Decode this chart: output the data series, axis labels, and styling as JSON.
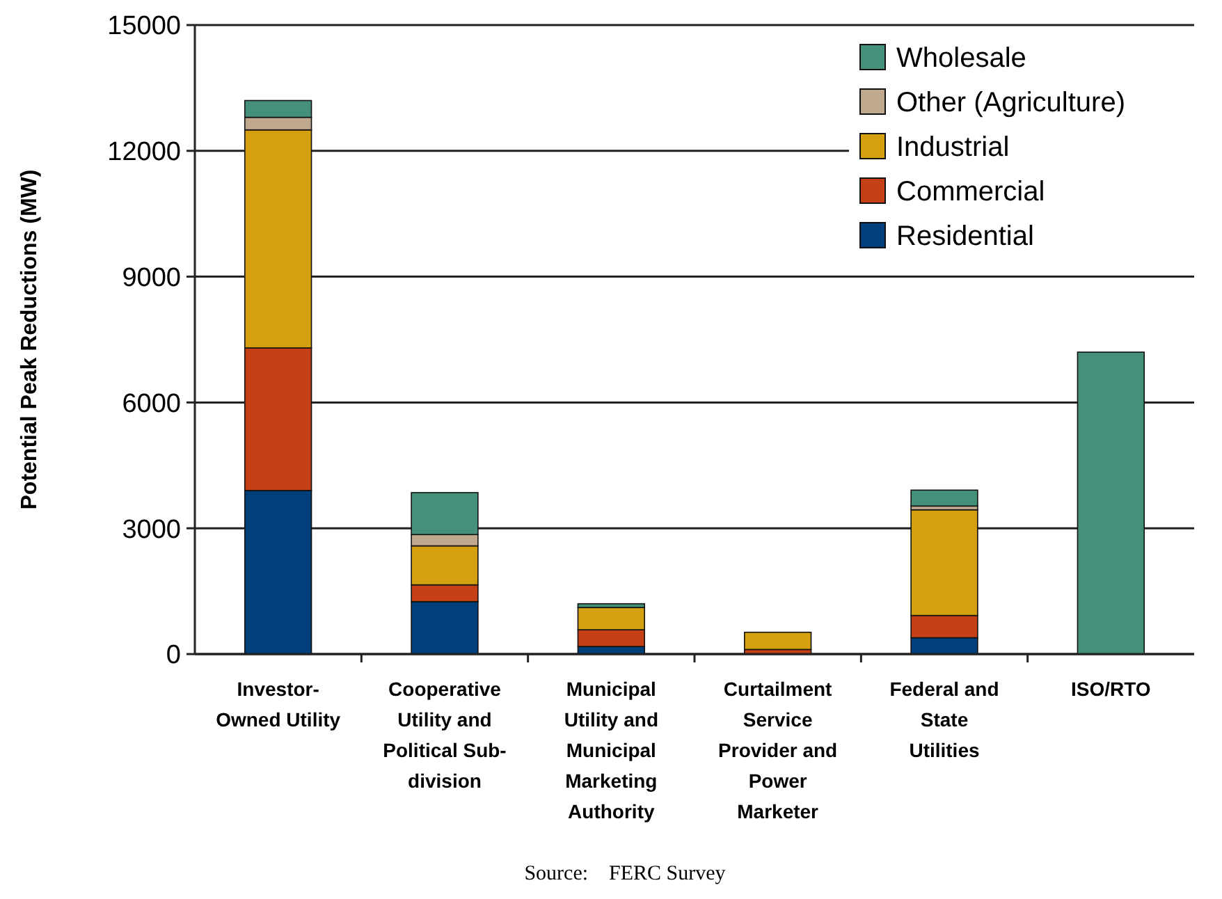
{
  "chart_data": {
    "type": "bar",
    "stacked": true,
    "ylabel": "Potential Peak Reductions (MW)",
    "categories": [
      "Investor-Owned Utility",
      "Cooperative Utility and Political Sub-division",
      "Municipal Utility and Municipal Marketing Authority",
      "Curtailment Service Provider and Power Marketer",
      "Federal and State Utilities",
      "ISO/RTO"
    ],
    "series": [
      {
        "name": "Residential",
        "color": "#003f7a",
        "values": [
          3900,
          1250,
          180,
          0,
          390,
          0
        ]
      },
      {
        "name": "Commercial",
        "color": "#c54016",
        "values": [
          3400,
          400,
          400,
          110,
          530,
          0
        ]
      },
      {
        "name": "Industrial",
        "color": "#d4a00f",
        "values": [
          5200,
          930,
          530,
          410,
          2520,
          0
        ]
      },
      {
        "name": "Other (Agriculture)",
        "color": "#bfa88e",
        "values": [
          300,
          270,
          0,
          0,
          90,
          0
        ]
      },
      {
        "name": "Wholesale",
        "color": "#45907a",
        "values": [
          400,
          1000,
          90,
          0,
          380,
          7200
        ]
      }
    ],
    "ylim": [
      0,
      15000
    ],
    "yticks": [
      0,
      3000,
      6000,
      9000,
      12000,
      15000
    ],
    "grid": "y",
    "legend": "top right",
    "annotations": [
      "Source:    FERC Survey"
    ]
  }
}
